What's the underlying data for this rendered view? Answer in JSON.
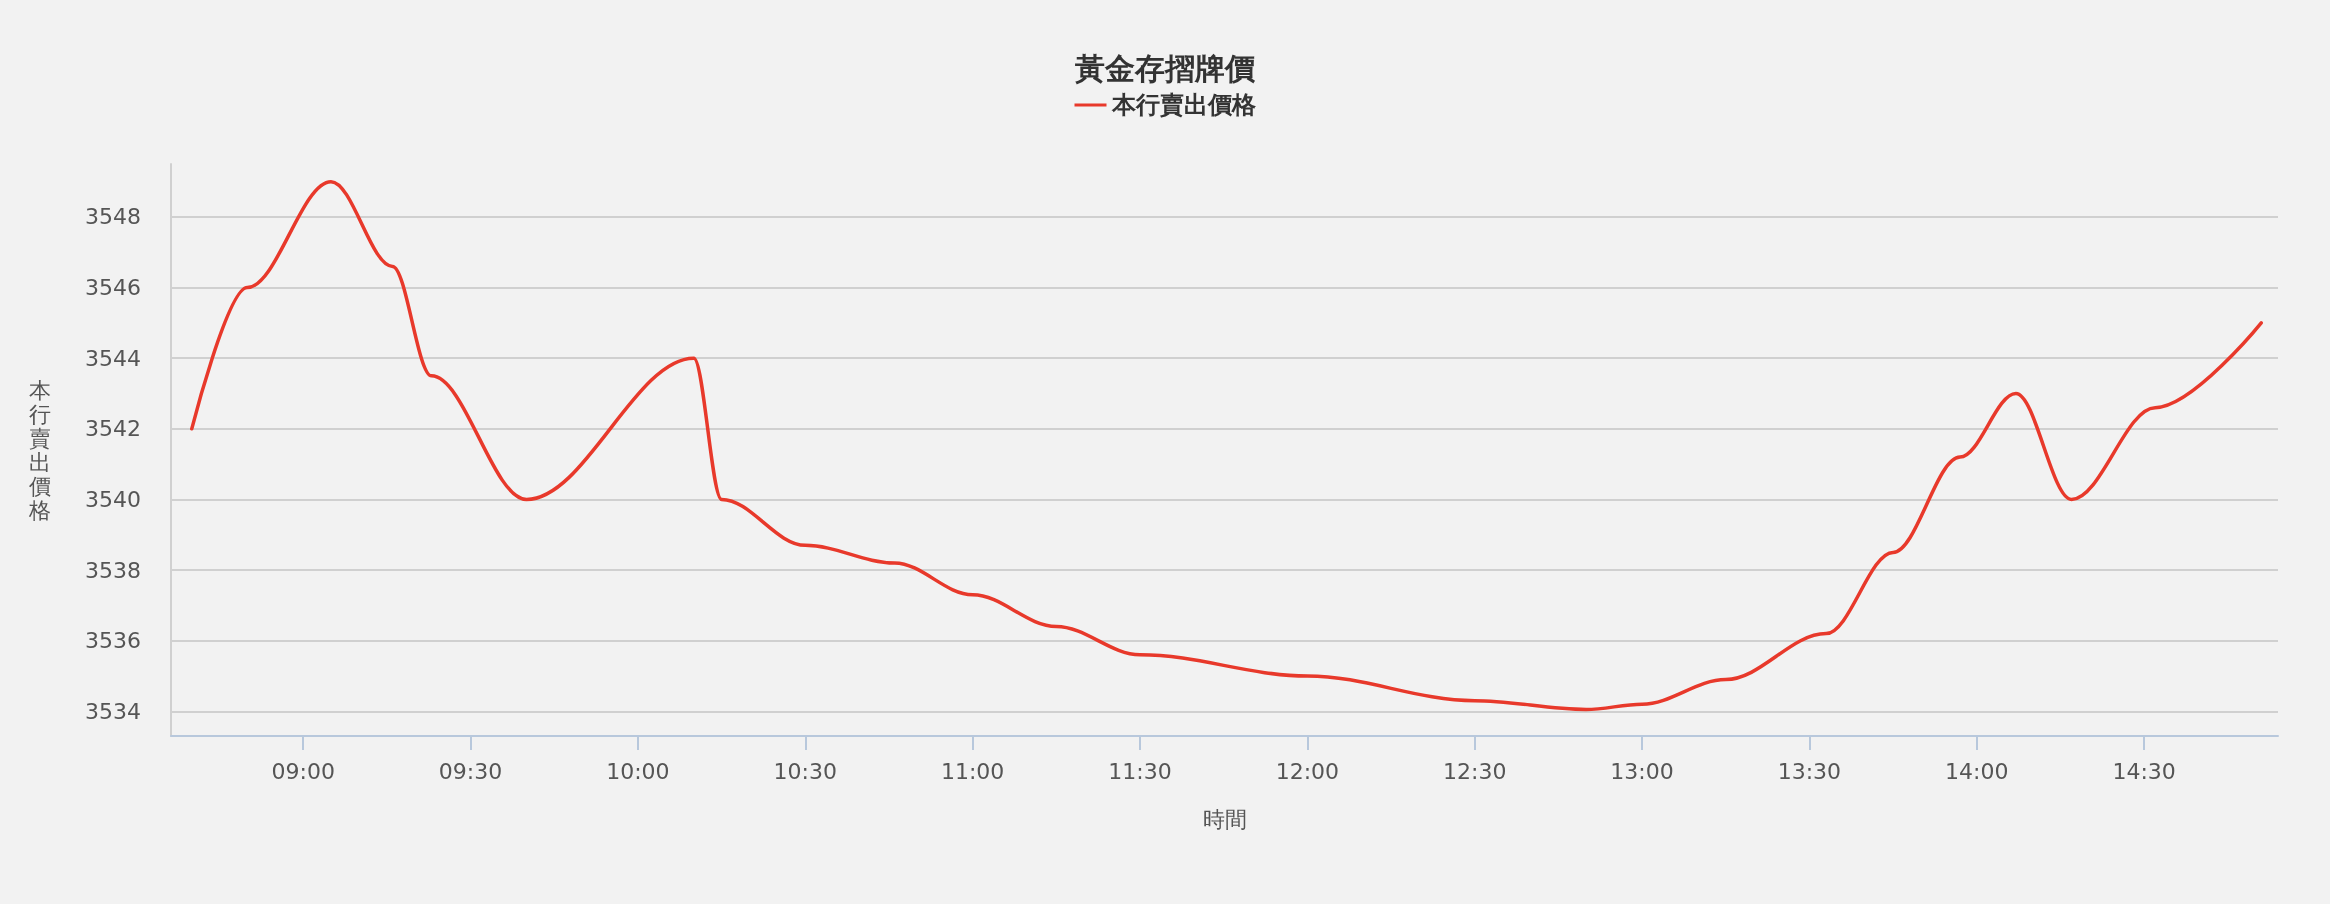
{
  "chart_data": {
    "type": "line",
    "title": "黃金存摺牌價",
    "xlabel": "時間",
    "ylabel": "本行賣出價格",
    "x": [
      8.667,
      8.833,
      9.083,
      9.267,
      9.383,
      9.667,
      10.167,
      10.25,
      10.5,
      10.767,
      11,
      11.25,
      11.5,
      12,
      12.5,
      12.833,
      13,
      13.25,
      13.55,
      13.75,
      13.95,
      14.117,
      14.283,
      14.533,
      14.85
    ],
    "series": [
      {
        "name": "本行賣出價格",
        "color": "#e8392b",
        "values": [
          3542,
          3546,
          3549,
          3546.6,
          3543.5,
          3540,
          3544,
          3540,
          3538.7,
          3538.2,
          3537.3,
          3536.4,
          3535.6,
          3535,
          3534.3,
          3534.05,
          3534.2,
          3534.9,
          3536.2,
          3538.5,
          3541.2,
          3543,
          3540,
          3542.6,
          3545
        ]
      }
    ],
    "xlim": [
      8.605,
      14.9
    ],
    "xticks": [
      {
        "value": 9,
        "label": "09:00"
      },
      {
        "value": 9.5,
        "label": "09:30"
      },
      {
        "value": 10,
        "label": "10:00"
      },
      {
        "value": 10.5,
        "label": "10:30"
      },
      {
        "value": 11,
        "label": "11:00"
      },
      {
        "value": 11.5,
        "label": "11:30"
      },
      {
        "value": 12,
        "label": "12:00"
      },
      {
        "value": 12.5,
        "label": "12:30"
      },
      {
        "value": 13,
        "label": "13:00"
      },
      {
        "value": 13.5,
        "label": "13:30"
      },
      {
        "value": 14,
        "label": "14:00"
      },
      {
        "value": 14.5,
        "label": "14:30"
      }
    ],
    "ylim": [
      3533.3,
      3549.5
    ],
    "yticks": [
      3534,
      3536,
      3538,
      3540,
      3542,
      3544,
      3546,
      3548
    ],
    "grid": "y",
    "legend": "top",
    "marker": "none",
    "line_style": "solid"
  }
}
